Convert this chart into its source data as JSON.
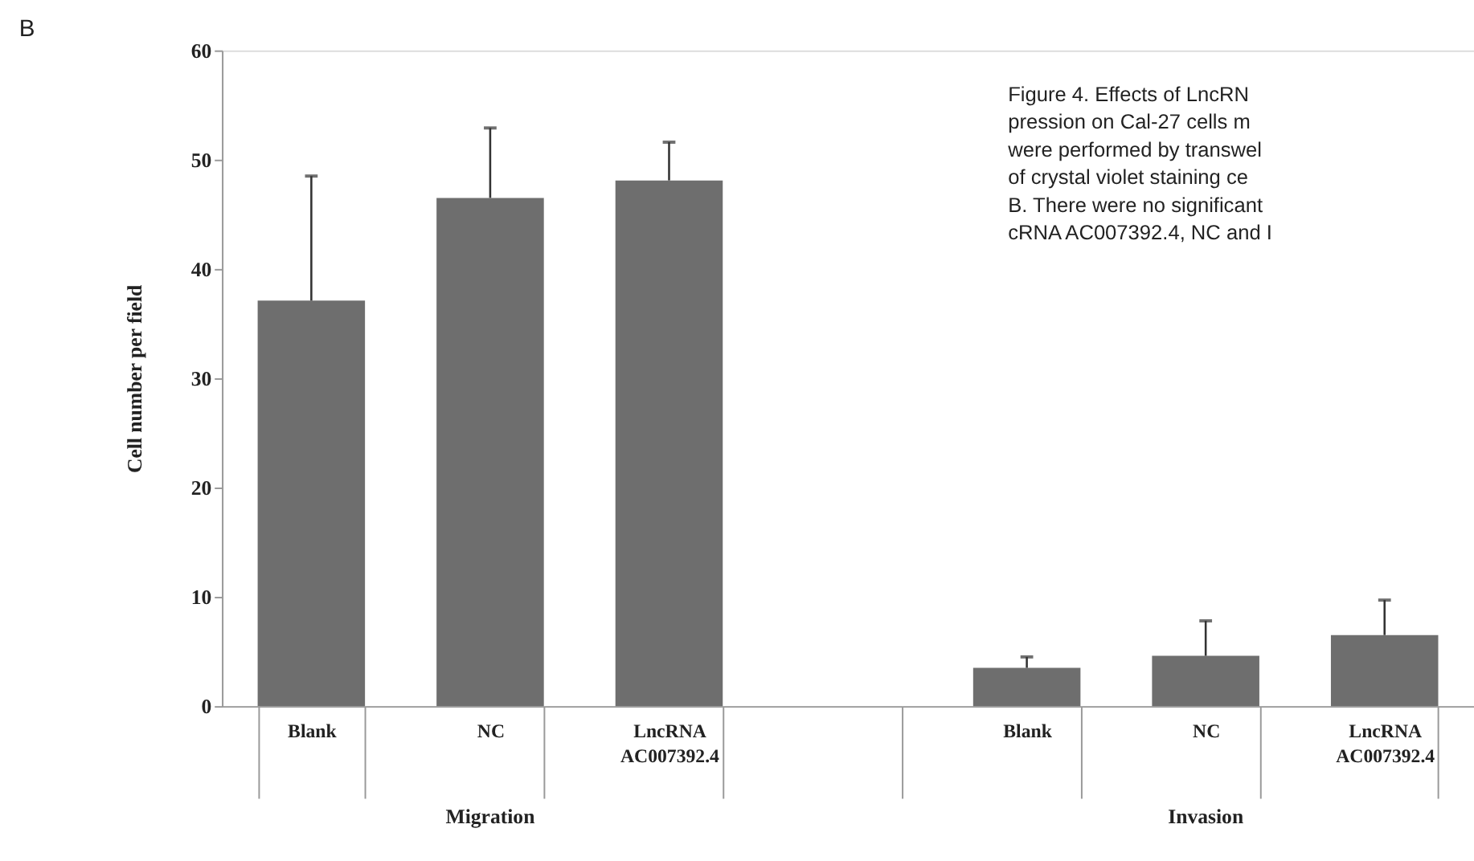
{
  "chart_data": {
    "type": "bar",
    "ylabel": "Cell number per field",
    "categories": [
      "Blank",
      "NC",
      "LncRNA AC007392.4",
      null,
      "Blank",
      "NC",
      "LncRNA AC007392.4"
    ],
    "values": [
      37.1,
      46.5,
      48.1,
      null,
      3.5,
      4.6,
      6.5
    ],
    "errors": [
      11.4,
      6.4,
      3.5,
      null,
      1.0,
      3.2,
      3.2
    ],
    "color": "#6e6e6e",
    "ylim": [
      0,
      60
    ],
    "yticks": [
      0,
      10,
      20,
      30,
      40,
      50,
      60
    ],
    "grid": false,
    "annotations": [
      "Migration",
      "Invasion",
      "B",
      "Figure 4. Effects of LncRN",
      "pression on Cal-27 cells m",
      "were performed by transwel",
      "of crystal violet staining ce",
      "B. There were no significant",
      "cRNA AC007392.4, NC and I"
    ]
  }
}
